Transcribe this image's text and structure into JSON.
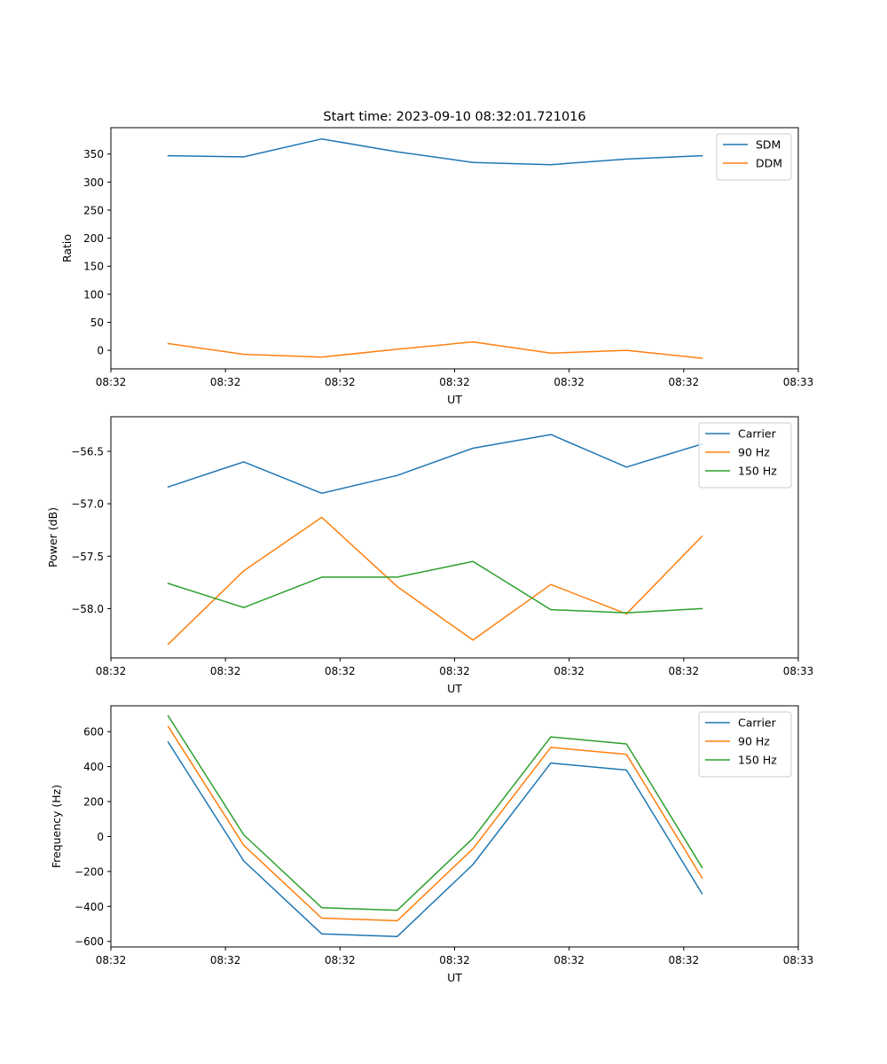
{
  "figure_title": "Start time: 2023-09-10 08:32:01.721016",
  "colors": {
    "blue": "#1f77b4",
    "orange": "#ff7f0e",
    "green": "#2ca02c"
  },
  "chart_data": [
    {
      "type": "line",
      "title": "Start time: 2023-09-10 08:32:01.721016",
      "xlabel": "UT",
      "ylabel": "Ratio",
      "xlim": [
        0,
        3.0
      ],
      "x": [
        0.25,
        0.58,
        0.92,
        1.25,
        1.58,
        1.92,
        2.25,
        2.58
      ],
      "x_ticks": [
        0,
        0.5,
        1.0,
        1.5,
        2.0,
        2.5,
        3.0
      ],
      "x_tick_labels": [
        "08:32",
        "08:32",
        "08:32",
        "08:32",
        "08:32",
        "08:32",
        "08:33"
      ],
      "ylim": [
        -33,
        397
      ],
      "y_ticks": [
        0,
        50,
        100,
        150,
        200,
        250,
        300,
        350
      ],
      "y_tick_labels": [
        "0",
        "50",
        "100",
        "150",
        "200",
        "250",
        "300",
        "350"
      ],
      "legend_loc": "upper right",
      "series": [
        {
          "name": "SDM",
          "color": "#1f77b4",
          "values": [
            347,
            345,
            377,
            354,
            335,
            331,
            341,
            347
          ]
        },
        {
          "name": "DDM",
          "color": "#ff7f0e",
          "values": [
            12,
            -7,
            -12,
            2,
            15,
            -5,
            0,
            -14
          ]
        }
      ]
    },
    {
      "type": "line",
      "xlabel": "UT",
      "ylabel": "Power (dB)",
      "xlim": [
        0,
        3.0
      ],
      "x": [
        0.25,
        0.58,
        0.92,
        1.25,
        1.58,
        1.92,
        2.25,
        2.58
      ],
      "x_ticks": [
        0,
        0.5,
        1.0,
        1.5,
        2.0,
        2.5,
        3.0
      ],
      "x_tick_labels": [
        "08:32",
        "08:32",
        "08:32",
        "08:32",
        "08:32",
        "08:32",
        "08:33"
      ],
      "ylim": [
        -58.47,
        -56.17
      ],
      "y_ticks": [
        -58.0,
        -57.5,
        -57.0,
        -56.5
      ],
      "y_tick_labels": [
        "−58.0",
        "−57.5",
        "−57.0",
        "−56.5"
      ],
      "legend_loc": "upper right",
      "series": [
        {
          "name": "Carrier",
          "color": "#1f77b4",
          "values": [
            -56.84,
            -56.6,
            -56.9,
            -56.73,
            -56.47,
            -56.34,
            -56.65,
            -56.43
          ]
        },
        {
          "name": "90 Hz",
          "color": "#ff7f0e",
          "values": [
            -58.34,
            -57.64,
            -57.13,
            -57.79,
            -58.3,
            -57.77,
            -58.05,
            -57.31
          ]
        },
        {
          "name": "150 Hz",
          "color": "#2ca02c",
          "values": [
            -57.76,
            -57.99,
            -57.7,
            -57.7,
            -57.55,
            -58.01,
            -58.04,
            -58.0
          ]
        }
      ]
    },
    {
      "type": "line",
      "xlabel": "UT",
      "ylabel": "Frequency (Hz)",
      "xlim": [
        0,
        3.0
      ],
      "x": [
        0.25,
        0.58,
        0.92,
        1.25,
        1.58,
        1.92,
        2.25,
        2.58
      ],
      "x_ticks": [
        0,
        0.5,
        1.0,
        1.5,
        2.0,
        2.5,
        3.0
      ],
      "x_tick_labels": [
        "08:32",
        "08:32",
        "08:32",
        "08:32",
        "08:32",
        "08:32",
        "08:33"
      ],
      "ylim": [
        -632,
        748
      ],
      "y_ticks": [
        -600,
        -400,
        -200,
        0,
        200,
        400,
        600
      ],
      "y_tick_labels": [
        "−600",
        "−400",
        "−200",
        "0",
        "200",
        "400",
        "600"
      ],
      "legend_loc": "upper right",
      "series": [
        {
          "name": "Carrier",
          "color": "#1f77b4",
          "values": [
            540,
            -140,
            -557,
            -572,
            -160,
            420,
            380,
            -327
          ]
        },
        {
          "name": "90 Hz",
          "color": "#ff7f0e",
          "values": [
            630,
            -50,
            -467,
            -482,
            -70,
            510,
            470,
            -237
          ]
        },
        {
          "name": "150 Hz",
          "color": "#2ca02c",
          "values": [
            690,
            10,
            -407,
            -422,
            -10,
            570,
            530,
            -177
          ]
        }
      ]
    }
  ]
}
